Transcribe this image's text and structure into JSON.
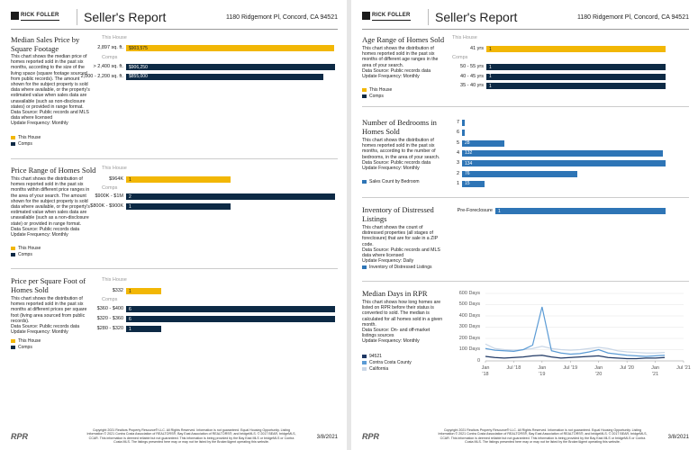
{
  "pages": [
    {
      "header": {
        "logo": "RICK FOLLER",
        "title": "Seller's Report",
        "address": "1180 Ridgemont Pl, Concord, CA 94521"
      },
      "sections": [
        {
          "title": "Median Sales Price by Square Footage",
          "description": "This chart shows the median price of homes reported sold in the past six months, according to the size of the living space (square footage sourced from public records). The amount shown for the subject property is sold data where available, or the property's estimated value when sales data are unavailable (such as non-disclosure states) or provided in range format.",
          "source": "Data Source: Public records and MLS data where licensed",
          "frequency": "Update Frequency: Monthly",
          "legend": [
            {
              "name": "This House",
              "color": "#f2b705"
            },
            {
              "name": "Comps",
              "color": "#0d2a45"
            }
          ],
          "chart": {
            "type": "house_comps",
            "house_label": "This House",
            "comps_label": "Comps",
            "house": {
              "label": "2,897 sq. ft.",
              "value": 903575,
              "value_label": "$903,575",
              "color": "#f2b705"
            },
            "comps": [
              {
                "label": "> 2,400 sq. ft.",
                "value": 906250,
                "value_label": "$906,250",
                "color": "#0d2a45"
              },
              {
                "label": "2,000 - 2,200 sq. ft.",
                "value": 855000,
                "value_label": "$855,000",
                "color": "#0d2a45"
              }
            ]
          }
        },
        {
          "title": "Price Range of Homes Sold",
          "description": "This chart shows the distribution of homes reported sold in the past six months within different price ranges in the area of your search. The amount shown for the subject property is sold data where available, or the property's estimated value when sales data are unavailable (such as a non-disclosure state) or provided in range format.",
          "source": "Data Source: Public records data",
          "frequency": "Update Frequency: Monthly",
          "legend": [
            {
              "name": "This House",
              "color": "#f2b705"
            },
            {
              "name": "Comps",
              "color": "#0d2a45"
            }
          ],
          "chart": {
            "type": "house_comps",
            "house_label": "This House",
            "comps_label": "Comps",
            "house": {
              "label": "$964K",
              "value": 1,
              "color": "#f2b705"
            },
            "comps": [
              {
                "label": "$900K - $1M",
                "value": 2,
                "color": "#0d2a45"
              },
              {
                "label": "$800K - $900K",
                "value": 1,
                "color": "#0d2a45"
              }
            ]
          }
        },
        {
          "title": "Price per Square Foot of Homes Sold",
          "description": "This chart shows the distribution of homes reported sold in the past six months at different prices per square foot (living area sourced from public records).",
          "source": "Data Source: Public records data",
          "frequency": "Update Frequency: Monthly",
          "legend": [
            {
              "name": "This House",
              "color": "#f2b705"
            },
            {
              "name": "Comps",
              "color": "#0d2a45"
            }
          ],
          "chart": {
            "type": "house_comps",
            "house_label": "This House",
            "comps_label": "Comps",
            "house": {
              "label": "$332",
              "value": 1,
              "color": "#f2b705"
            },
            "comps": [
              {
                "label": "$360 - $400",
                "value": 6,
                "color": "#0d2a45"
              },
              {
                "label": "$320 - $360",
                "value": 6,
                "color": "#0d2a45"
              },
              {
                "label": "$280 - $320",
                "value": 1,
                "color": "#0d2a45"
              }
            ]
          }
        }
      ],
      "footer": {
        "logo": "RPR",
        "copyright": "Copyright 2021 Realtors Property Resource® LLC. All Rights Reserved. Information is not guaranteed. Equal Housing Opportunity. Listing Information © 2021 Contra Costa Association of REALTORS®, Bay East Association of REALTORS®, and bridgeMLS. © 2017 BEAR, bridgeMLS, CCAR. This information is deemed reliable but not guaranteed. This information is being provided by the Bay East MLS or bridgeMLS or Contra Costa MLS. The listings presented here may or may not be listed by the Broker/Agent operating this website.",
        "date": "3/8/2021"
      }
    },
    {
      "header": {
        "logo": "RICK FOLLER",
        "title": "Seller's Report",
        "address": "1180 Ridgemont Pl, Concord, CA 94521"
      },
      "sections": [
        {
          "title": "Age Range of Homes Sold",
          "description": "This chart shows the distribution of homes reported sold in the past six months of different age ranges in the area of your search.",
          "source": "Data Source: Public records data",
          "frequency": "Update Frequency: Monthly",
          "legend": [
            {
              "name": "This House",
              "color": "#f2b705"
            },
            {
              "name": "Comps",
              "color": "#0d2a45"
            }
          ],
          "chart": {
            "type": "house_comps",
            "house_label": "This House",
            "comps_label": "Comps",
            "house": {
              "label": "41 yrs",
              "value": 1,
              "color": "#f2b705"
            },
            "comps": [
              {
                "label": "50 - 55 yrs",
                "value": 1,
                "color": "#0d2a45"
              },
              {
                "label": "40 - 45 yrs",
                "value": 1,
                "color": "#0d2a45"
              },
              {
                "label": "35 - 40 yrs",
                "value": 1,
                "color": "#0d2a45"
              }
            ]
          }
        },
        {
          "title": "Number of Bedrooms in Homes Sold",
          "description": "This chart shows the distribution of homes reported sold in the past six months, according to the number of bedrooms, in the area of your search.",
          "source": "Data Source: Public records data",
          "frequency": "Update Frequency: Monthly",
          "legend": [
            {
              "name": "Sales Count by Bedroom",
              "color": "#2e75b6"
            }
          ],
          "chart": {
            "type": "bars",
            "color": "#2e75b6",
            "categories": [
              "7",
              "6",
              "5",
              "4",
              "3",
              "2",
              "1"
            ],
            "values": [
              1,
              1,
              28,
              132,
              134,
              76,
              15
            ]
          }
        },
        {
          "title": "Inventory of Distressed Listings",
          "description": "This chart shows the count of distressed properties (all stages of foreclosure) that are for sale in a ZIP code.",
          "source": "Data Source: Public records and MLS data where licensed",
          "frequency": "Update Frequency: Daily",
          "legend": [
            {
              "name": "Inventory of Distressed Listings",
              "color": "#2e75b6"
            }
          ],
          "chart": {
            "type": "bars",
            "color": "#2e75b6",
            "categories": [
              "Pre-Foreclosure"
            ],
            "values": [
              1
            ]
          }
        },
        {
          "title": "Median Days in RPR",
          "description": "This chart shows how long homes are listed on RPR before their status is converted to sold. The median is calculated for all homes sold in a given month.",
          "source": "Data Source: On- and off-market listings sources",
          "frequency": "Update Frequency: Monthly",
          "chart": {
            "type": "line",
            "x": [
              "2018-01",
              "2018-03",
              "2018-05",
              "2018-07",
              "2018-09",
              "2018-11",
              "2019-01",
              "2019-03",
              "2019-05",
              "2019-07",
              "2019-09",
              "2019-11",
              "2020-01",
              "2020-03",
              "2020-05",
              "2020-07",
              "2020-09",
              "2020-11",
              "2021-01",
              "2021-03"
            ],
            "xlim": [
              "2018-01",
              "2021-07"
            ],
            "xticks": [
              {
                "value": "2018-01",
                "label": "Jan '18"
              },
              {
                "value": "2018-07",
                "label": "Jul '18"
              },
              {
                "value": "2019-01",
                "label": "Jan '19"
              },
              {
                "value": "2019-07",
                "label": "Jul '19"
              },
              {
                "value": "2020-01",
                "label": "Jan '20"
              },
              {
                "value": "2020-07",
                "label": "Jul '20"
              },
              {
                "value": "2021-01",
                "label": "Jan '21"
              },
              {
                "value": "2021-07",
                "label": "Jul '21"
              }
            ],
            "ylim": [
              0,
              600
            ],
            "yticks": [
              0,
              {
                "value": 100,
                "label": "100 Days"
              },
              {
                "value": 200,
                "label": "200 Days"
              },
              {
                "value": 300,
                "label": "300 Days"
              },
              {
                "value": 400,
                "label": "400 Days"
              },
              {
                "value": 500,
                "label": "500 Days"
              },
              {
                "value": 600,
                "label": "600 Days"
              }
            ],
            "grid": true,
            "series": [
              {
                "name": "94521",
                "color": "#1f3864",
                "values": [
                  40,
                  30,
                  25,
                  30,
                  35,
                  45,
                  50,
                  35,
                  25,
                  30,
                  35,
                  40,
                  45,
                  30,
                  25,
                  20,
                  20,
                  25,
                  25,
                  30
                ]
              },
              {
                "name": "Contra Costa County",
                "color": "#5b9bd5",
                "values": [
                  110,
                  95,
                  90,
                  85,
                  100,
                  140,
                  480,
                  90,
                  70,
                  60,
                  65,
                  80,
                  100,
                  70,
                  60,
                  50,
                  45,
                  40,
                  45,
                  50
                ]
              },
              {
                "name": "California",
                "color": "#c9d6e6",
                "values": [
                  150,
                  110,
                  100,
                  95,
                  100,
                  110,
                  130,
                  110,
                  100,
                  95,
                  100,
                  110,
                  120,
                  110,
                  90,
                  80,
                  75,
                  70,
                  70,
                  75
                ]
              }
            ]
          }
        }
      ],
      "footer": {
        "logo": "RPR",
        "copyright": "Copyright 2021 Realtors Property Resource® LLC. All Rights Reserved. Information is not guaranteed. Equal Housing Opportunity. Listing Information © 2021 Contra Costa Association of REALTORS®, Bay East Association of REALTORS®, and bridgeMLS. © 2017 BEAR, bridgeMLS, CCAR. This information is deemed reliable but not guaranteed. This information is being provided by the Bay East MLS or bridgeMLS or Contra Costa MLS. The listings presented here may or may not be listed by the Broker/Agent operating this website.",
        "date": "3/8/2021"
      }
    }
  ]
}
